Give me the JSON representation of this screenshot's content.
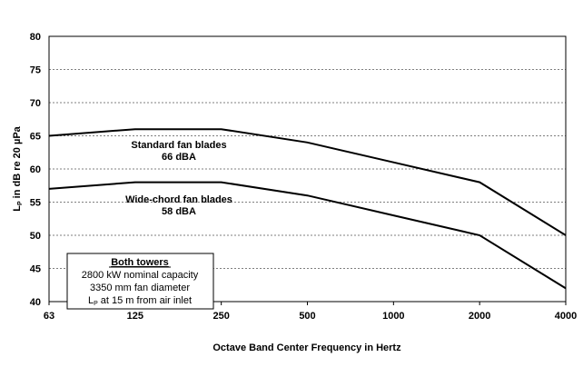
{
  "chart_data": {
    "type": "line",
    "x_scale": "log2",
    "x": [
      63,
      125,
      250,
      500,
      1000,
      2000,
      4000
    ],
    "x_tick_labels": [
      "63",
      "125",
      "250",
      "500",
      "1000",
      "2000",
      "4000"
    ],
    "xlabel": "Octave Band Center Frequency in Hertz",
    "ylabel": "L",
    "ylabel_sub": "P",
    "ylabel_suffix": " in dB re 20 µPa",
    "ylim": [
      40,
      80
    ],
    "y_ticks": [
      40,
      45,
      50,
      55,
      60,
      65,
      70,
      75,
      80
    ],
    "grid": "horizontal dashed",
    "series": [
      {
        "values": [
          65,
          66,
          66,
          64,
          61,
          58,
          50
        ],
        "label_line1": "Standard fan blades",
        "label_line2": "66 dBA"
      },
      {
        "values": [
          57,
          58,
          58,
          56,
          53,
          50,
          42
        ],
        "label_line1": "Wide-chord fan blades",
        "label_line2": "58 dBA"
      }
    ],
    "info_box": {
      "heading": "Both towers",
      "line1": "2800 kW nominal capacity",
      "line2": "3350 mm fan diameter",
      "line3_main": "L",
      "line3_sub": "P",
      "line3_rest": " at 15 m from air inlet"
    }
  }
}
